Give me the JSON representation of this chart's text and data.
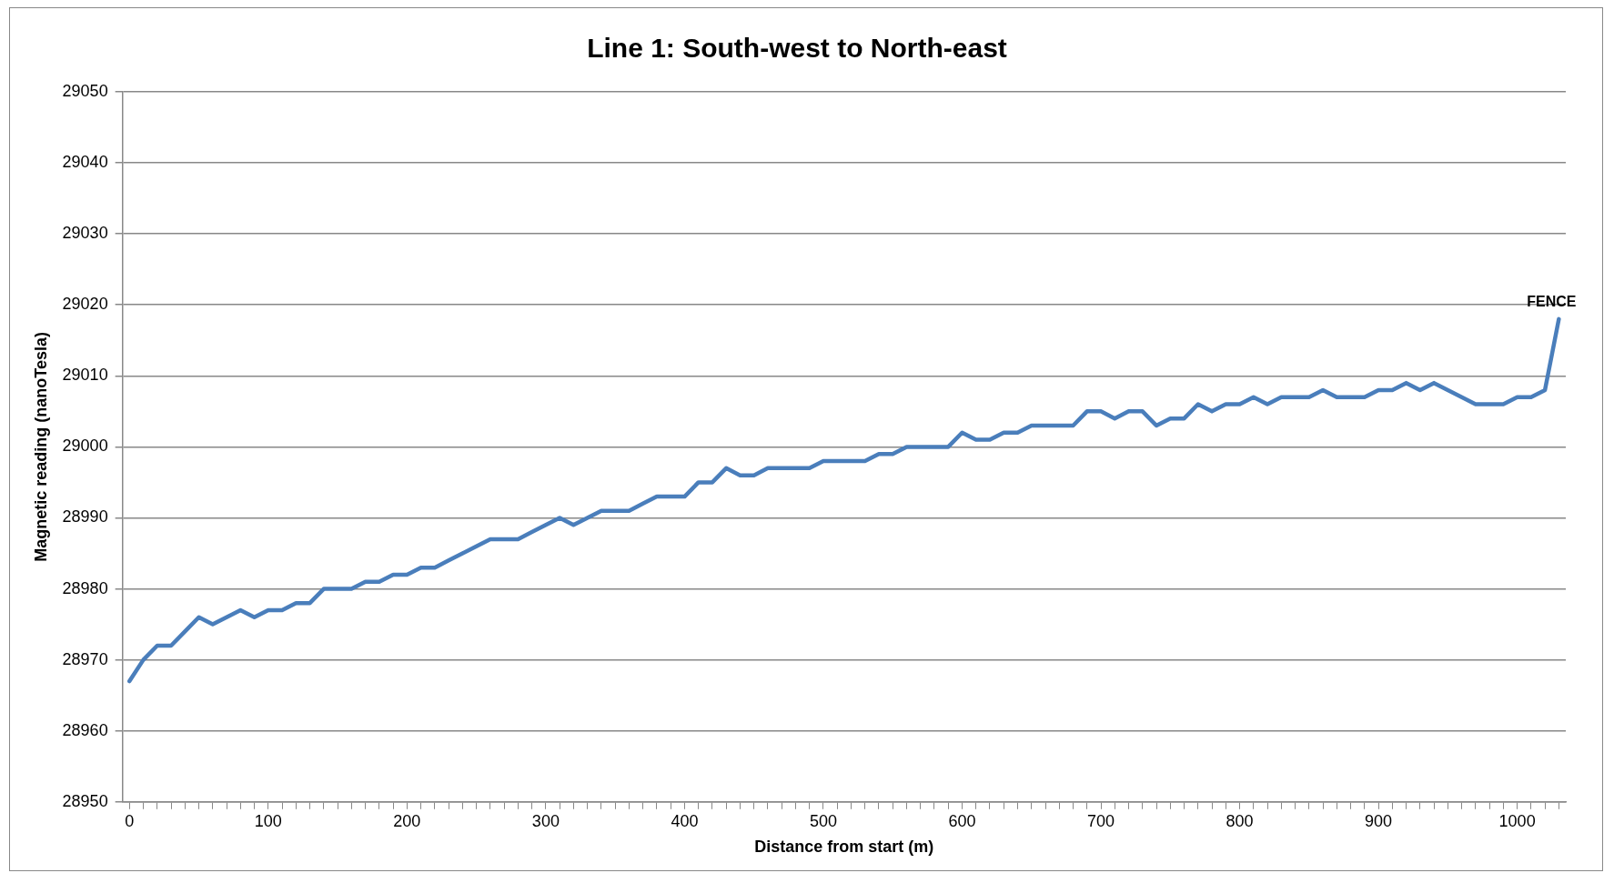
{
  "chart_data": {
    "type": "line",
    "title": "Line 1: South-west to North-east",
    "xlabel": "Distance from start (m)",
    "ylabel": "Magnetic reading (nanoTesla)",
    "x": [
      0,
      10,
      20,
      30,
      40,
      50,
      60,
      70,
      80,
      90,
      100,
      110,
      120,
      130,
      140,
      150,
      160,
      170,
      180,
      190,
      200,
      210,
      220,
      230,
      240,
      250,
      260,
      270,
      280,
      290,
      300,
      310,
      320,
      330,
      340,
      350,
      360,
      370,
      380,
      390,
      400,
      410,
      420,
      430,
      440,
      450,
      460,
      470,
      480,
      490,
      500,
      510,
      520,
      530,
      540,
      550,
      560,
      570,
      580,
      590,
      600,
      610,
      620,
      630,
      640,
      650,
      660,
      670,
      680,
      690,
      700,
      710,
      720,
      730,
      740,
      750,
      760,
      770,
      780,
      790,
      800,
      810,
      820,
      830,
      840,
      850,
      860,
      870,
      880,
      890,
      900,
      910,
      920,
      930,
      940,
      950,
      960,
      970,
      980,
      990,
      1000,
      1010,
      1020,
      1030
    ],
    "series": [
      {
        "color": "#4a7ebb",
        "values": [
          28967,
          28970,
          28972,
          28972,
          28974,
          28976,
          28975,
          28976,
          28977,
          28976,
          28977,
          28977,
          28978,
          28978,
          28980,
          28980,
          28980,
          28981,
          28981,
          28982,
          28982,
          28983,
          28983,
          28984,
          28985,
          28986,
          28987,
          28987,
          28987,
          28988,
          28989,
          28990,
          28989,
          28990,
          28991,
          28991,
          28991,
          28992,
          28993,
          28993,
          28993,
          28995,
          28995,
          28997,
          28996,
          28996,
          28997,
          28997,
          28997,
          28997,
          28998,
          28998,
          28998,
          28998,
          28999,
          28999,
          29000,
          29000,
          29000,
          29000,
          29002,
          29001,
          29001,
          29002,
          29002,
          29003,
          29003,
          29003,
          29003,
          29005,
          29005,
          29004,
          29005,
          29005,
          29003,
          29004,
          29004,
          29006,
          29005,
          29006,
          29006,
          29007,
          29006,
          29007,
          29007,
          29007,
          29008,
          29007,
          29007,
          29007,
          29008,
          29008,
          29009,
          29008,
          29009,
          29008,
          29007,
          29006,
          29006,
          29006,
          29007,
          29007,
          29008,
          29018
        ]
      }
    ],
    "xlim": [
      -5,
      1035
    ],
    "xticks": [
      0,
      {
        "value": 10,
        "label": null
      },
      {
        "value": 20,
        "label": null
      },
      {
        "value": 30,
        "label": null
      },
      {
        "value": 40,
        "label": null
      },
      {
        "value": 50,
        "label": null
      },
      {
        "value": 60,
        "label": null
      },
      {
        "value": 70,
        "label": null
      },
      {
        "value": 80,
        "label": null
      },
      {
        "value": 90,
        "label": null
      },
      100,
      {
        "value": 110,
        "label": null
      },
      {
        "value": 120,
        "label": null
      },
      {
        "value": 130,
        "label": null
      },
      {
        "value": 140,
        "label": null
      },
      {
        "value": 150,
        "label": null
      },
      {
        "value": 160,
        "label": null
      },
      {
        "value": 170,
        "label": null
      },
      {
        "value": 180,
        "label": null
      },
      {
        "value": 190,
        "label": null
      },
      200,
      {
        "value": 210,
        "label": null
      },
      {
        "value": 220,
        "label": null
      },
      {
        "value": 230,
        "label": null
      },
      {
        "value": 240,
        "label": null
      },
      {
        "value": 250,
        "label": null
      },
      {
        "value": 260,
        "label": null
      },
      {
        "value": 270,
        "label": null
      },
      {
        "value": 280,
        "label": null
      },
      {
        "value": 290,
        "label": null
      },
      300,
      {
        "value": 310,
        "label": null
      },
      {
        "value": 320,
        "label": null
      },
      {
        "value": 330,
        "label": null
      },
      {
        "value": 340,
        "label": null
      },
      {
        "value": 350,
        "label": null
      },
      {
        "value": 360,
        "label": null
      },
      {
        "value": 370,
        "label": null
      },
      {
        "value": 380,
        "label": null
      },
      {
        "value": 390,
        "label": null
      },
      400,
      {
        "value": 410,
        "label": null
      },
      {
        "value": 420,
        "label": null
      },
      {
        "value": 430,
        "label": null
      },
      {
        "value": 440,
        "label": null
      },
      {
        "value": 450,
        "label": null
      },
      {
        "value": 460,
        "label": null
      },
      {
        "value": 470,
        "label": null
      },
      {
        "value": 480,
        "label": null
      },
      {
        "value": 490,
        "label": null
      },
      500,
      {
        "value": 510,
        "label": null
      },
      {
        "value": 520,
        "label": null
      },
      {
        "value": 530,
        "label": null
      },
      {
        "value": 540,
        "label": null
      },
      {
        "value": 550,
        "label": null
      },
      {
        "value": 560,
        "label": null
      },
      {
        "value": 570,
        "label": null
      },
      {
        "value": 580,
        "label": null
      },
      {
        "value": 590,
        "label": null
      },
      600,
      {
        "value": 610,
        "label": null
      },
      {
        "value": 620,
        "label": null
      },
      {
        "value": 630,
        "label": null
      },
      {
        "value": 640,
        "label": null
      },
      {
        "value": 650,
        "label": null
      },
      {
        "value": 660,
        "label": null
      },
      {
        "value": 670,
        "label": null
      },
      {
        "value": 680,
        "label": null
      },
      {
        "value": 690,
        "label": null
      },
      700,
      {
        "value": 710,
        "label": null
      },
      {
        "value": 720,
        "label": null
      },
      {
        "value": 730,
        "label": null
      },
      {
        "value": 740,
        "label": null
      },
      {
        "value": 750,
        "label": null
      },
      {
        "value": 760,
        "label": null
      },
      {
        "value": 770,
        "label": null
      },
      {
        "value": 780,
        "label": null
      },
      {
        "value": 790,
        "label": null
      },
      800,
      {
        "value": 810,
        "label": null
      },
      {
        "value": 820,
        "label": null
      },
      {
        "value": 830,
        "label": null
      },
      {
        "value": 840,
        "label": null
      },
      {
        "value": 850,
        "label": null
      },
      {
        "value": 860,
        "label": null
      },
      {
        "value": 870,
        "label": null
      },
      {
        "value": 880,
        "label": null
      },
      {
        "value": 890,
        "label": null
      },
      900,
      {
        "value": 910,
        "label": null
      },
      {
        "value": 920,
        "label": null
      },
      {
        "value": 930,
        "label": null
      },
      {
        "value": 940,
        "label": null
      },
      {
        "value": 950,
        "label": null
      },
      {
        "value": 960,
        "label": null
      },
      {
        "value": 970,
        "label": null
      },
      {
        "value": 980,
        "label": null
      },
      {
        "value": 990,
        "label": null
      },
      1000,
      {
        "value": 1010,
        "label": null
      },
      {
        "value": 1020,
        "label": null
      },
      {
        "value": 1030,
        "label": null
      }
    ],
    "ylim": [
      28950,
      29050
    ],
    "yticks": [
      28950,
      28960,
      28970,
      28980,
      28990,
      29000,
      29010,
      29020,
      29030,
      29040,
      29050
    ],
    "grid": "y",
    "legend": false,
    "marker": "none",
    "line_style": "solid",
    "annotations": [
      {
        "text": "FENCE",
        "x": 1030,
        "y": 29018
      }
    ]
  }
}
